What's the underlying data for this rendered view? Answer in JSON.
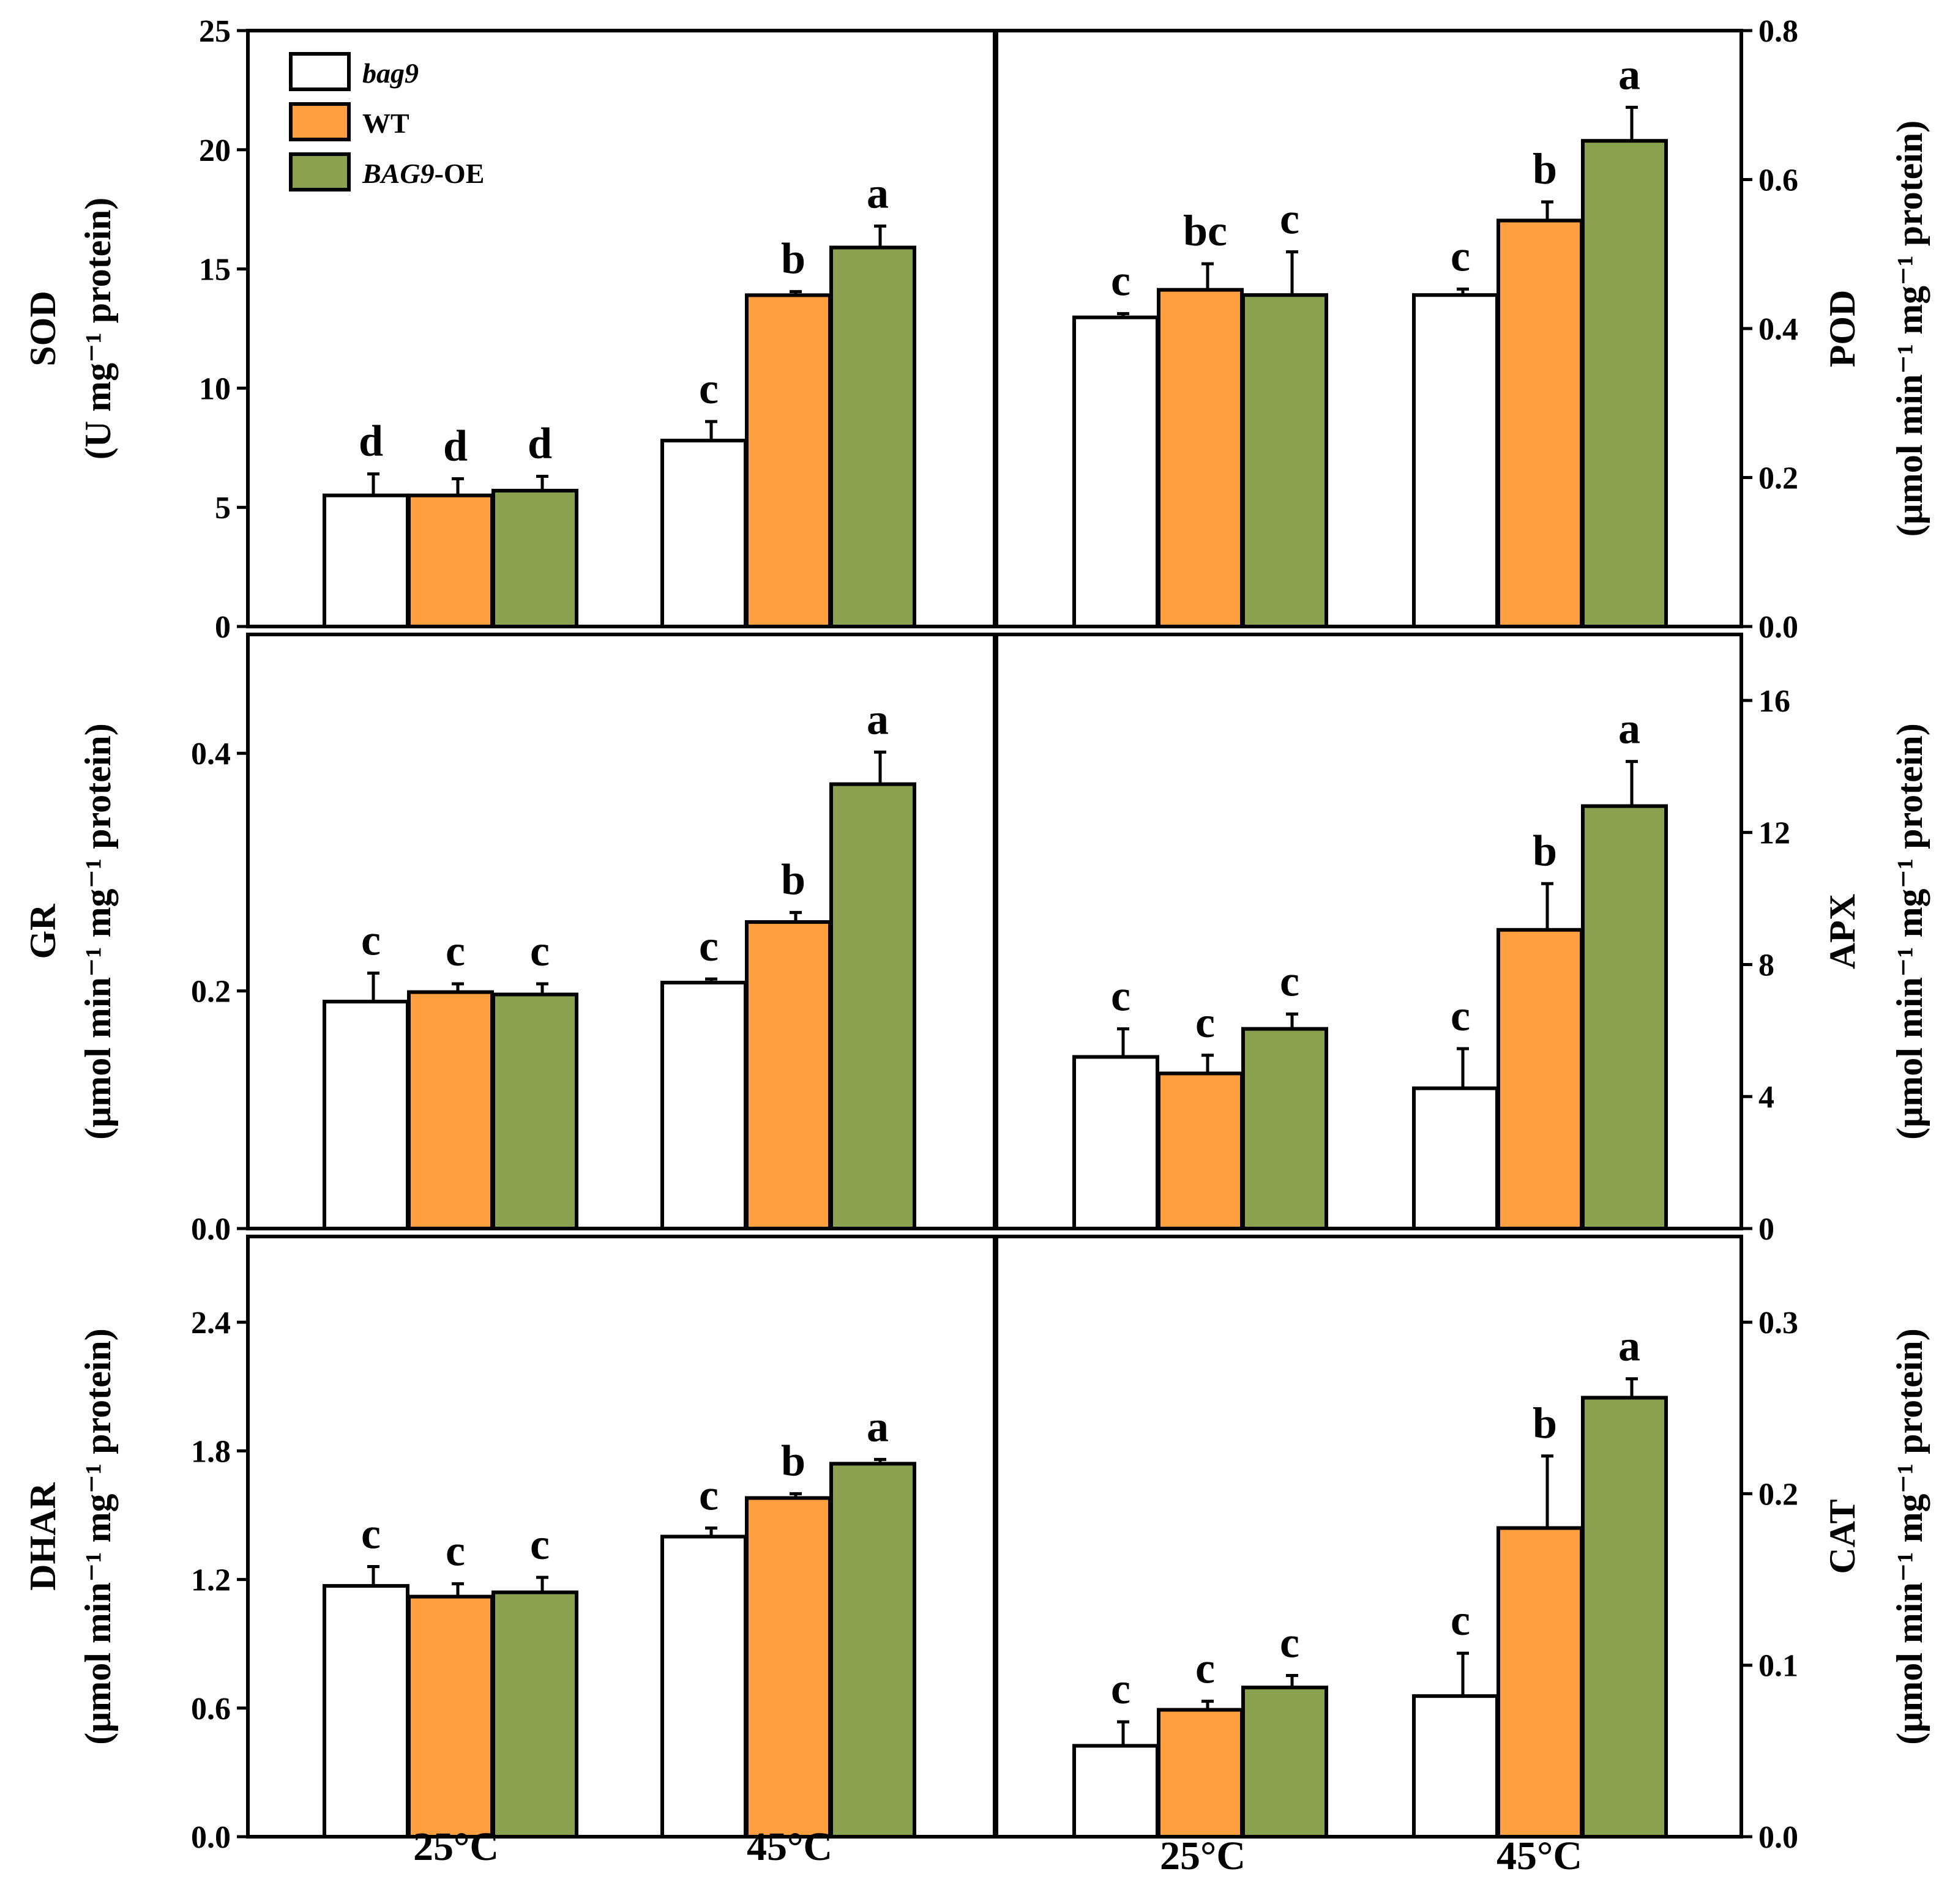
{
  "figure": {
    "legend": [
      {
        "label": "bag9",
        "italic": true,
        "color": "#ffffff"
      },
      {
        "label": "WT",
        "italic": false,
        "color": "#ff9f40"
      },
      {
        "label": "BAG9",
        "suffix": "-OE",
        "italic": true,
        "color": "#8aa150"
      }
    ],
    "groups_top": [
      "25°C",
      "45°C"
    ],
    "groups_bottom": [
      "25°C",
      "45°C"
    ],
    "superscript": "−1"
  },
  "chart_data": [
    {
      "type": "bar",
      "panel": "SOD",
      "side": "left",
      "ylabel_name": "SOD",
      "ylabel_unit": "(U mg⁻¹ protein)",
      "ylim": [
        0,
        25
      ],
      "yticks": [
        "0",
        "5",
        "10",
        "15",
        "20",
        "25"
      ],
      "categories": [
        "25°C",
        "45°C"
      ],
      "series": [
        {
          "name": "bag9",
          "values": [
            5.5,
            7.8
          ],
          "errors": [
            0.9,
            0.8
          ],
          "letters": [
            "d",
            "c"
          ]
        },
        {
          "name": "WT",
          "values": [
            5.5,
            13.9
          ],
          "errors": [
            0.7,
            0.15
          ],
          "letters": [
            "d",
            "b"
          ]
        },
        {
          "name": "BAG9-OE",
          "values": [
            5.7,
            15.9
          ],
          "errors": [
            0.6,
            0.9
          ],
          "letters": [
            "d",
            "a"
          ]
        }
      ]
    },
    {
      "type": "bar",
      "panel": "POD",
      "side": "right",
      "ylabel_name": "POD",
      "ylabel_unit": "(μmol min⁻¹ mg⁻¹ protein)",
      "ylim": [
        0,
        0.8
      ],
      "yticks": [
        "0.0",
        "0.2",
        "0.4",
        "0.6",
        "0.8"
      ],
      "categories": [
        "25°C",
        "45°C"
      ],
      "series": [
        {
          "name": "bag9",
          "values": [
            0.415,
            0.445
          ],
          "errors": [
            0.005,
            0.008
          ],
          "letters": [
            "c",
            "c"
          ]
        },
        {
          "name": "WT",
          "values": [
            0.452,
            0.545
          ],
          "errors": [
            0.035,
            0.025
          ],
          "letters": [
            "bc",
            "b"
          ]
        },
        {
          "name": "BAG9-OE",
          "values": [
            0.445,
            0.652
          ],
          "errors": [
            0.058,
            0.045
          ],
          "letters": [
            "c",
            "a"
          ]
        }
      ]
    },
    {
      "type": "bar",
      "panel": "GR",
      "side": "left",
      "ylabel_name": "GR",
      "ylabel_unit": "(μmol min⁻¹ mg⁻¹ protein)",
      "ylim": [
        0,
        0.5
      ],
      "yticks": [
        "0.0",
        "0.2",
        "0.4"
      ],
      "categories": [
        "25°C",
        "45°C"
      ],
      "series": [
        {
          "name": "bag9",
          "values": [
            0.191,
            0.207
          ],
          "errors": [
            0.024,
            0.003
          ],
          "letters": [
            "c",
            "c"
          ]
        },
        {
          "name": "WT",
          "values": [
            0.199,
            0.258
          ],
          "errors": [
            0.007,
            0.008
          ],
          "letters": [
            "c",
            "b"
          ]
        },
        {
          "name": "BAG9-OE",
          "values": [
            0.197,
            0.374
          ],
          "errors": [
            0.009,
            0.027
          ],
          "letters": [
            "c",
            "a"
          ]
        }
      ]
    },
    {
      "type": "bar",
      "panel": "APX",
      "side": "right",
      "ylabel_name": "APX",
      "ylabel_unit": "(μmol min⁻¹ mg⁻¹ protein)",
      "ylim": [
        0,
        18
      ],
      "yticks": [
        "0",
        "4",
        "8",
        "12",
        "16"
      ],
      "categories": [
        "25°C",
        "45°C"
      ],
      "series": [
        {
          "name": "bag9",
          "values": [
            5.2,
            4.25
          ],
          "errors": [
            0.85,
            1.2
          ],
          "letters": [
            "c",
            "c"
          ]
        },
        {
          "name": "WT",
          "values": [
            4.7,
            9.05
          ],
          "errors": [
            0.55,
            1.4
          ],
          "letters": [
            "c",
            "b"
          ]
        },
        {
          "name": "BAG9-OE",
          "values": [
            6.05,
            12.8
          ],
          "errors": [
            0.45,
            1.35
          ],
          "letters": [
            "c",
            "a"
          ]
        }
      ]
    },
    {
      "type": "bar",
      "panel": "DHAR",
      "side": "left",
      "ylabel_name": "DHAR",
      "ylabel_unit": "(μmol min⁻¹ mg⁻¹ protein)",
      "ylim": [
        0,
        2.8
      ],
      "yticks": [
        "0.0",
        "0.6",
        "1.2",
        "1.8",
        "2.4"
      ],
      "categories": [
        "25°C",
        "45°C"
      ],
      "series": [
        {
          "name": "bag9",
          "values": [
            1.17,
            1.4
          ],
          "errors": [
            0.09,
            0.04
          ],
          "letters": [
            "c",
            "c"
          ]
        },
        {
          "name": "WT",
          "values": [
            1.12,
            1.58
          ],
          "errors": [
            0.06,
            0.02
          ],
          "letters": [
            "c",
            "b"
          ]
        },
        {
          "name": "BAG9-OE",
          "values": [
            1.14,
            1.74
          ],
          "errors": [
            0.07,
            0.02
          ],
          "letters": [
            "c",
            "a"
          ]
        }
      ]
    },
    {
      "type": "bar",
      "panel": "CAT",
      "side": "right",
      "ylabel_name": "CAT",
      "ylabel_unit": "(μmol min⁻¹ mg⁻¹ protein)",
      "ylim": [
        0,
        0.35
      ],
      "yticks": [
        "0.0",
        "0.1",
        "0.2",
        "0.3"
      ],
      "categories": [
        "25°C",
        "45°C"
      ],
      "series": [
        {
          "name": "bag9",
          "values": [
            0.053,
            0.082
          ],
          "errors": [
            0.014,
            0.025
          ],
          "letters": [
            "c",
            "c"
          ]
        },
        {
          "name": "WT",
          "values": [
            0.074,
            0.18
          ],
          "errors": [
            0.005,
            0.042
          ],
          "letters": [
            "c",
            "b"
          ]
        },
        {
          "name": "BAG9-OE",
          "values": [
            0.087,
            0.256
          ],
          "errors": [
            0.007,
            0.011
          ],
          "letters": [
            "c",
            "a"
          ]
        }
      ]
    }
  ]
}
